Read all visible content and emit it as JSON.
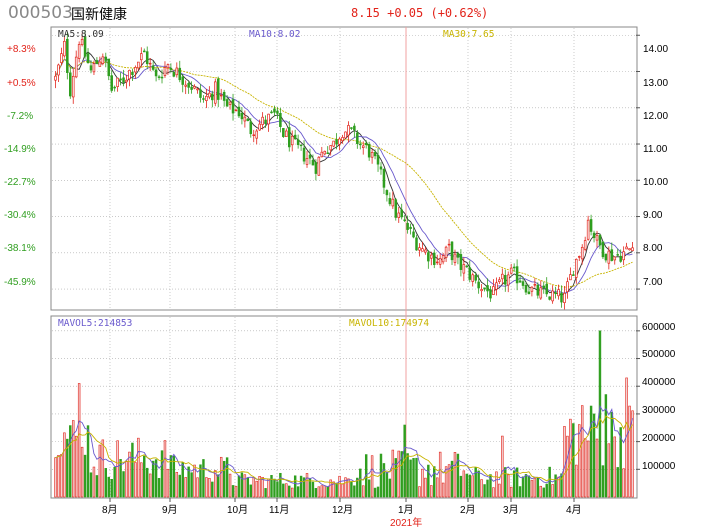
{
  "header": {
    "code": "000503",
    "name": "国新健康",
    "quote": "8.15  +0.05  (+0.62%)"
  },
  "indicators": {
    "ma5": "MA5:8.09",
    "ma10": "MA10:8.02",
    "ma30": "MA30:7.65",
    "mavol5": "MAVOL5:214853",
    "mavol10": "MAVOL10:174974"
  },
  "colors": {
    "up": "#e2231a",
    "down": "#2f9e1f",
    "ma5": "#333333",
    "ma10": "#6a5acd",
    "ma30": "#c8b400",
    "grid": "#aaaaaa",
    "frame": "#888888",
    "marker": "#f2a0a0"
  },
  "chart_data": [
    {
      "type": "candlestick",
      "title": "",
      "x_axis_labels": [
        "8月",
        "9月",
        "10月",
        "11月",
        "12月",
        "1月",
        "2月",
        "3月",
        "4月"
      ],
      "year_marker": "2021年",
      "right_axis_ticks": [
        "14.00",
        "13.00",
        "12.00",
        "11.00",
        "10.00",
        "9.00",
        "8.00",
        "7.00"
      ],
      "left_axis_ticks": [
        "+8.3%",
        "+0.5%",
        "-7.2%",
        "-14.9%",
        "-22.7%",
        "-30.4%",
        "-38.1%",
        "-45.9%"
      ],
      "ylim": [
        6.45,
        14.2
      ],
      "price_path": [
        [
          0,
          12.8
        ],
        [
          3,
          13.7
        ],
        [
          5,
          12.5
        ],
        [
          8,
          13.9
        ],
        [
          12,
          13.0
        ],
        [
          16,
          13.5
        ],
        [
          19,
          12.5
        ],
        [
          22,
          12.7
        ],
        [
          26,
          13.1
        ],
        [
          30,
          13.5
        ],
        [
          34,
          12.8
        ],
        [
          38,
          13.2
        ],
        [
          42,
          12.9
        ],
        [
          46,
          12.6
        ],
        [
          50,
          12.2
        ],
        [
          54,
          12.5
        ],
        [
          58,
          12.0
        ],
        [
          62,
          11.9
        ],
        [
          66,
          11.4
        ],
        [
          70,
          11.6
        ],
        [
          74,
          11.8
        ],
        [
          77,
          11.3
        ],
        [
          80,
          11.0
        ],
        [
          84,
          10.7
        ],
        [
          88,
          10.4
        ],
        [
          91,
          10.9
        ],
        [
          94,
          11.0
        ],
        [
          97,
          11.4
        ],
        [
          100,
          11.3
        ],
        [
          103,
          11.0
        ],
        [
          106,
          10.8
        ],
        [
          109,
          10.3
        ],
        [
          112,
          9.7
        ],
        [
          115,
          9.1
        ],
        [
          118,
          8.8
        ],
        [
          121,
          8.4
        ],
        [
          124,
          8.1
        ],
        [
          127,
          7.9
        ],
        [
          130,
          7.8
        ],
        [
          133,
          8.1
        ],
        [
          136,
          7.7
        ],
        [
          139,
          7.5
        ],
        [
          142,
          7.2
        ],
        [
          145,
          7.0
        ],
        [
          148,
          6.85
        ],
        [
          151,
          7.2
        ],
        [
          154,
          7.4
        ],
        [
          157,
          7.3
        ],
        [
          160,
          7.0
        ],
        [
          163,
          6.9
        ],
        [
          166,
          6.85
        ],
        [
          169,
          6.8
        ],
        [
          172,
          6.75
        ],
        [
          175,
          7.6
        ],
        [
          178,
          8.2
        ],
        [
          180,
          8.9
        ],
        [
          183,
          8.3
        ],
        [
          186,
          8.0
        ],
        [
          189,
          7.9
        ],
        [
          192,
          8.0
        ],
        [
          195,
          8.15
        ]
      ],
      "ma_labels": [
        "MA5:8.09",
        "MA10:8.02",
        "MA30:7.65"
      ]
    },
    {
      "type": "bar",
      "title": "",
      "right_axis_ticks": [
        "600000",
        "500000",
        "400000",
        "300000",
        "200000",
        "100000"
      ],
      "ylim": [
        0,
        650000
      ],
      "ma_labels": [
        "MAVOL5:214853",
        "MAVOL10:174974"
      ]
    }
  ]
}
